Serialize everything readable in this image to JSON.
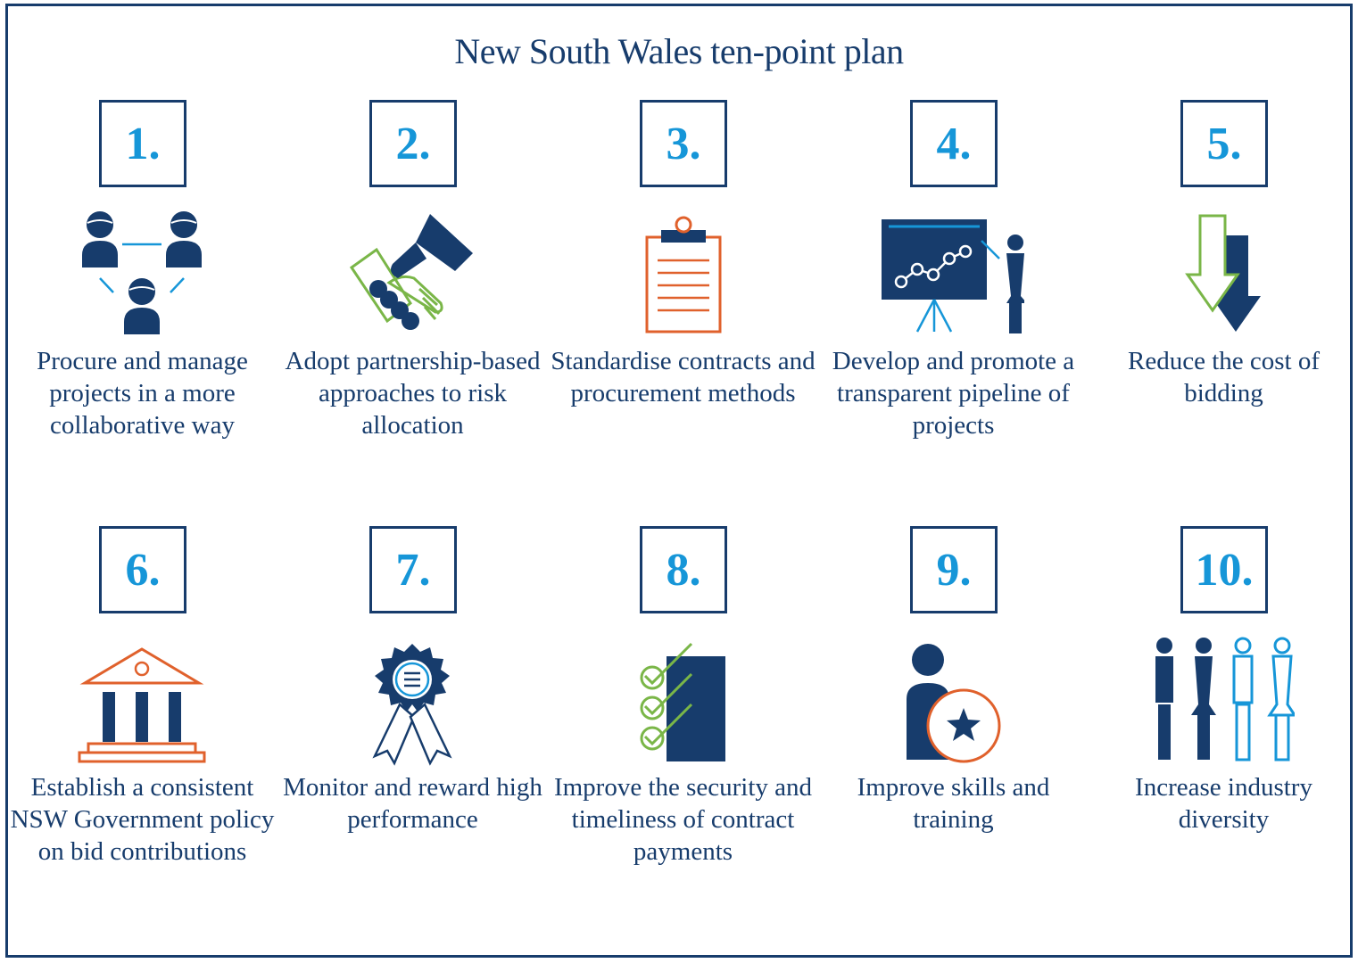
{
  "title": "New South Wales ten-point plan",
  "colors": {
    "navy": "#173c6c",
    "blue": "#1696d8",
    "green": "#7ab648",
    "orange": "#e0612c"
  },
  "items": [
    {
      "number": "1.",
      "icon": "collaboration-people-icon",
      "label": "Procure and manage projects in a more collaborative way"
    },
    {
      "number": "2.",
      "icon": "handshake-icon",
      "label": "Adopt partnership-based approaches to risk allocation"
    },
    {
      "number": "3.",
      "icon": "clipboard-icon",
      "label": "Standardise contracts and procurement methods"
    },
    {
      "number": "4.",
      "icon": "presentation-chart-icon",
      "label": "Develop and promote a transparent pipeline of projects"
    },
    {
      "number": "5.",
      "icon": "down-arrows-icon",
      "label": "Reduce the cost of bidding"
    },
    {
      "number": "6.",
      "icon": "government-building-icon",
      "label": "Establish a consistent NSW Government policy on bid contributions"
    },
    {
      "number": "7.",
      "icon": "award-rosette-icon",
      "label": "Monitor and reward high performance"
    },
    {
      "number": "8.",
      "icon": "checklist-icon",
      "label": "Improve the security and timeliness of contract payments"
    },
    {
      "number": "9.",
      "icon": "person-star-icon",
      "label": "Improve skills and training"
    },
    {
      "number": "10.",
      "icon": "diverse-people-icon",
      "label": "Increase industry diversity"
    }
  ]
}
